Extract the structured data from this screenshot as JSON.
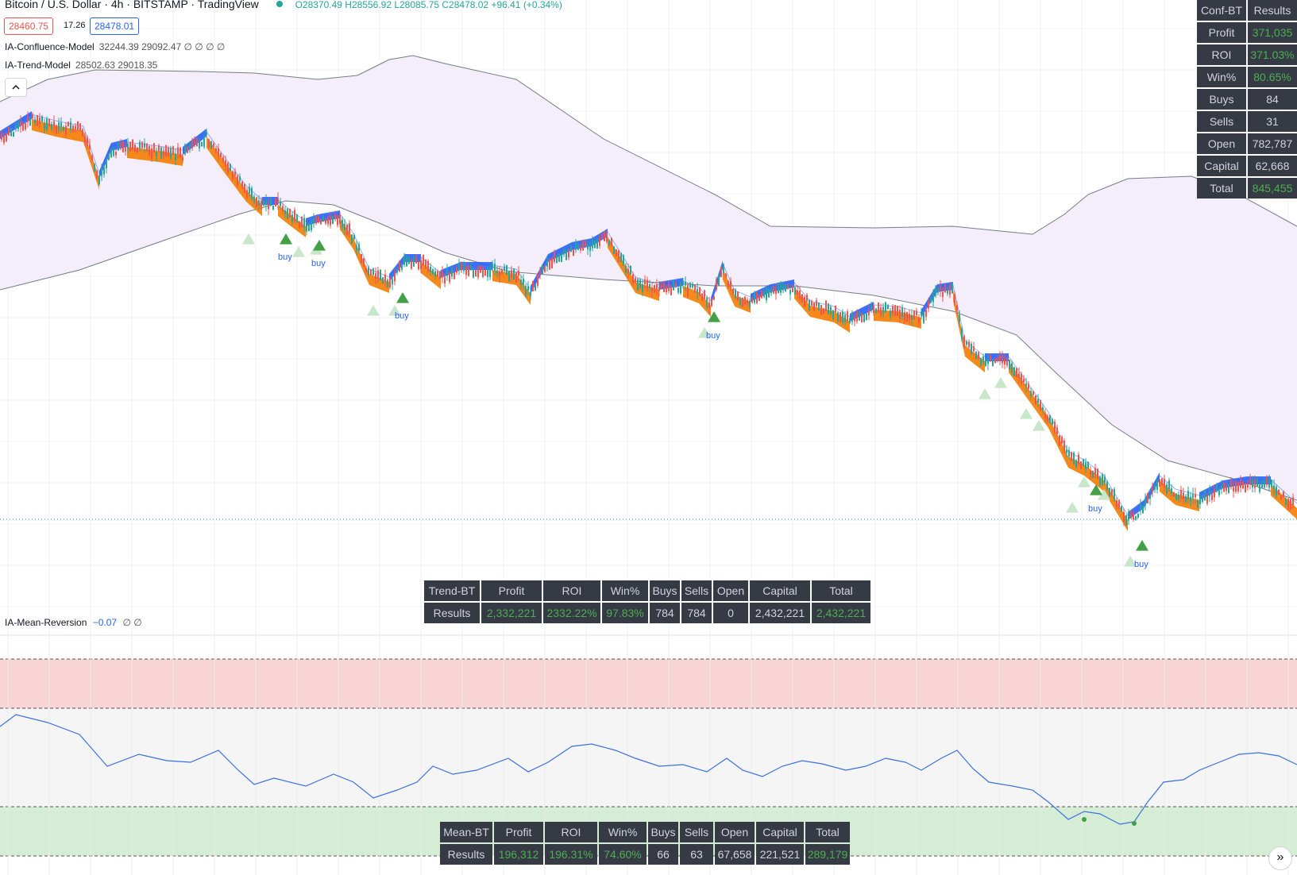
{
  "header": {
    "title": "Bitcoin / U.S. Dollar · 4h · BITSTAMP · TradingView",
    "ohlc": "O28370.49 H28556.92 L28085.75 C28478.02 +96.41 (+0.34%)",
    "bid": "28460.75",
    "spread": "17.26",
    "ask": "28478.01"
  },
  "indicators": {
    "confluence": {
      "name": "IA-Confluence-Model",
      "values": "32244.39 29092.47 ∅ ∅ ∅ ∅"
    },
    "trend": {
      "name": "IA-Trend-Model",
      "values": "28502.63 29018.35"
    },
    "mean_reversion": {
      "name": "IA-Mean-Reversion",
      "value": "−0.07",
      "extra": "∅ ∅"
    }
  },
  "collapse_icon": "chevron-up-icon",
  "buy_label": "buy",
  "conf_bt": {
    "header": [
      "Conf-BT",
      "Results"
    ],
    "rows": [
      [
        "Profit",
        "371,035"
      ],
      [
        "ROI",
        "371.03%"
      ],
      [
        "Win%",
        "80.65%"
      ],
      [
        "Buys",
        "84"
      ],
      [
        "Sells",
        "31"
      ],
      [
        "Open",
        "782,787"
      ],
      [
        "Capital",
        "62,668"
      ],
      [
        "Total",
        "845,455"
      ]
    ]
  },
  "trend_bt": {
    "header": [
      "Trend-BT",
      "Profit",
      "ROI",
      "Win%",
      "Buys",
      "Sells",
      "Open",
      "Capital",
      "Total"
    ],
    "row": [
      "Results",
      "2,332,221",
      "2332.22%",
      "97.83%",
      "784",
      "784",
      "0",
      "2,432,221",
      "2,432,221"
    ]
  },
  "mean_bt": {
    "header": [
      "Mean-BT",
      "Profit",
      "ROI",
      "Win%",
      "Buys",
      "Sells",
      "Open",
      "Capital",
      "Total"
    ],
    "row": [
      "Results",
      "196,312",
      "196.31%",
      "74.60%",
      "66",
      "63",
      "67,658",
      "221,521",
      "289,179"
    ]
  },
  "colors": {
    "up": "#26a69a",
    "down": "#ef5350",
    "trend_up": "#2962ff",
    "trend_down": "#f57c00",
    "band_fill": "#f3eef9",
    "buy_strong": "#43a047",
    "buy_weak": "#c8e6c9",
    "overbought": "#f8d4d4",
    "oversold": "#d4edd4",
    "osc_line": "#3d6fe0",
    "positive_text": "#4caf50"
  },
  "scroll_icon": "double-chevron-right-icon"
}
